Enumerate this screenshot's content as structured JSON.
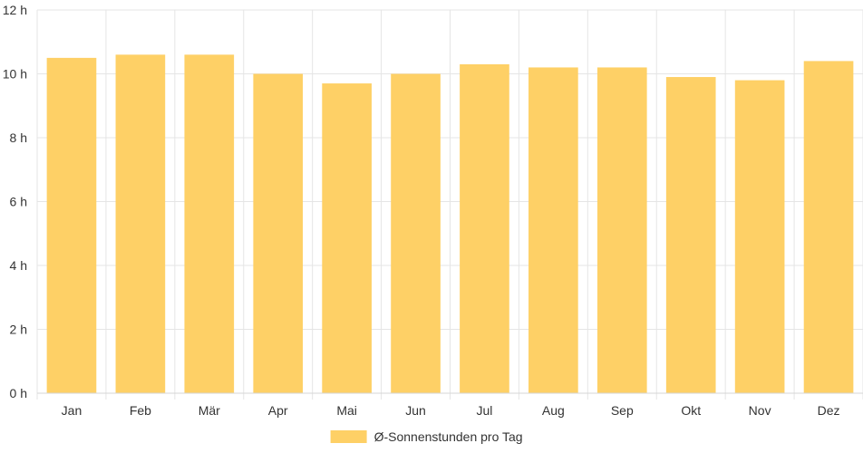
{
  "chart_data": {
    "type": "bar",
    "categories": [
      "Jan",
      "Feb",
      "Mär",
      "Apr",
      "Mai",
      "Jun",
      "Jul",
      "Aug",
      "Sep",
      "Okt",
      "Nov",
      "Dez"
    ],
    "series": [
      {
        "name": "Ø-Sonnenstunden pro Tag",
        "values": [
          10.5,
          10.6,
          10.6,
          10.0,
          9.7,
          10.0,
          10.3,
          10.2,
          10.2,
          9.9,
          9.8,
          10.4
        ],
        "color": "#fed066"
      }
    ],
    "y_ticks": [
      "0 h",
      "2 h",
      "4 h",
      "6 h",
      "8 h",
      "10 h",
      "12 h"
    ],
    "ylim": [
      0,
      12
    ],
    "grid": true,
    "legend_position": "bottom"
  }
}
